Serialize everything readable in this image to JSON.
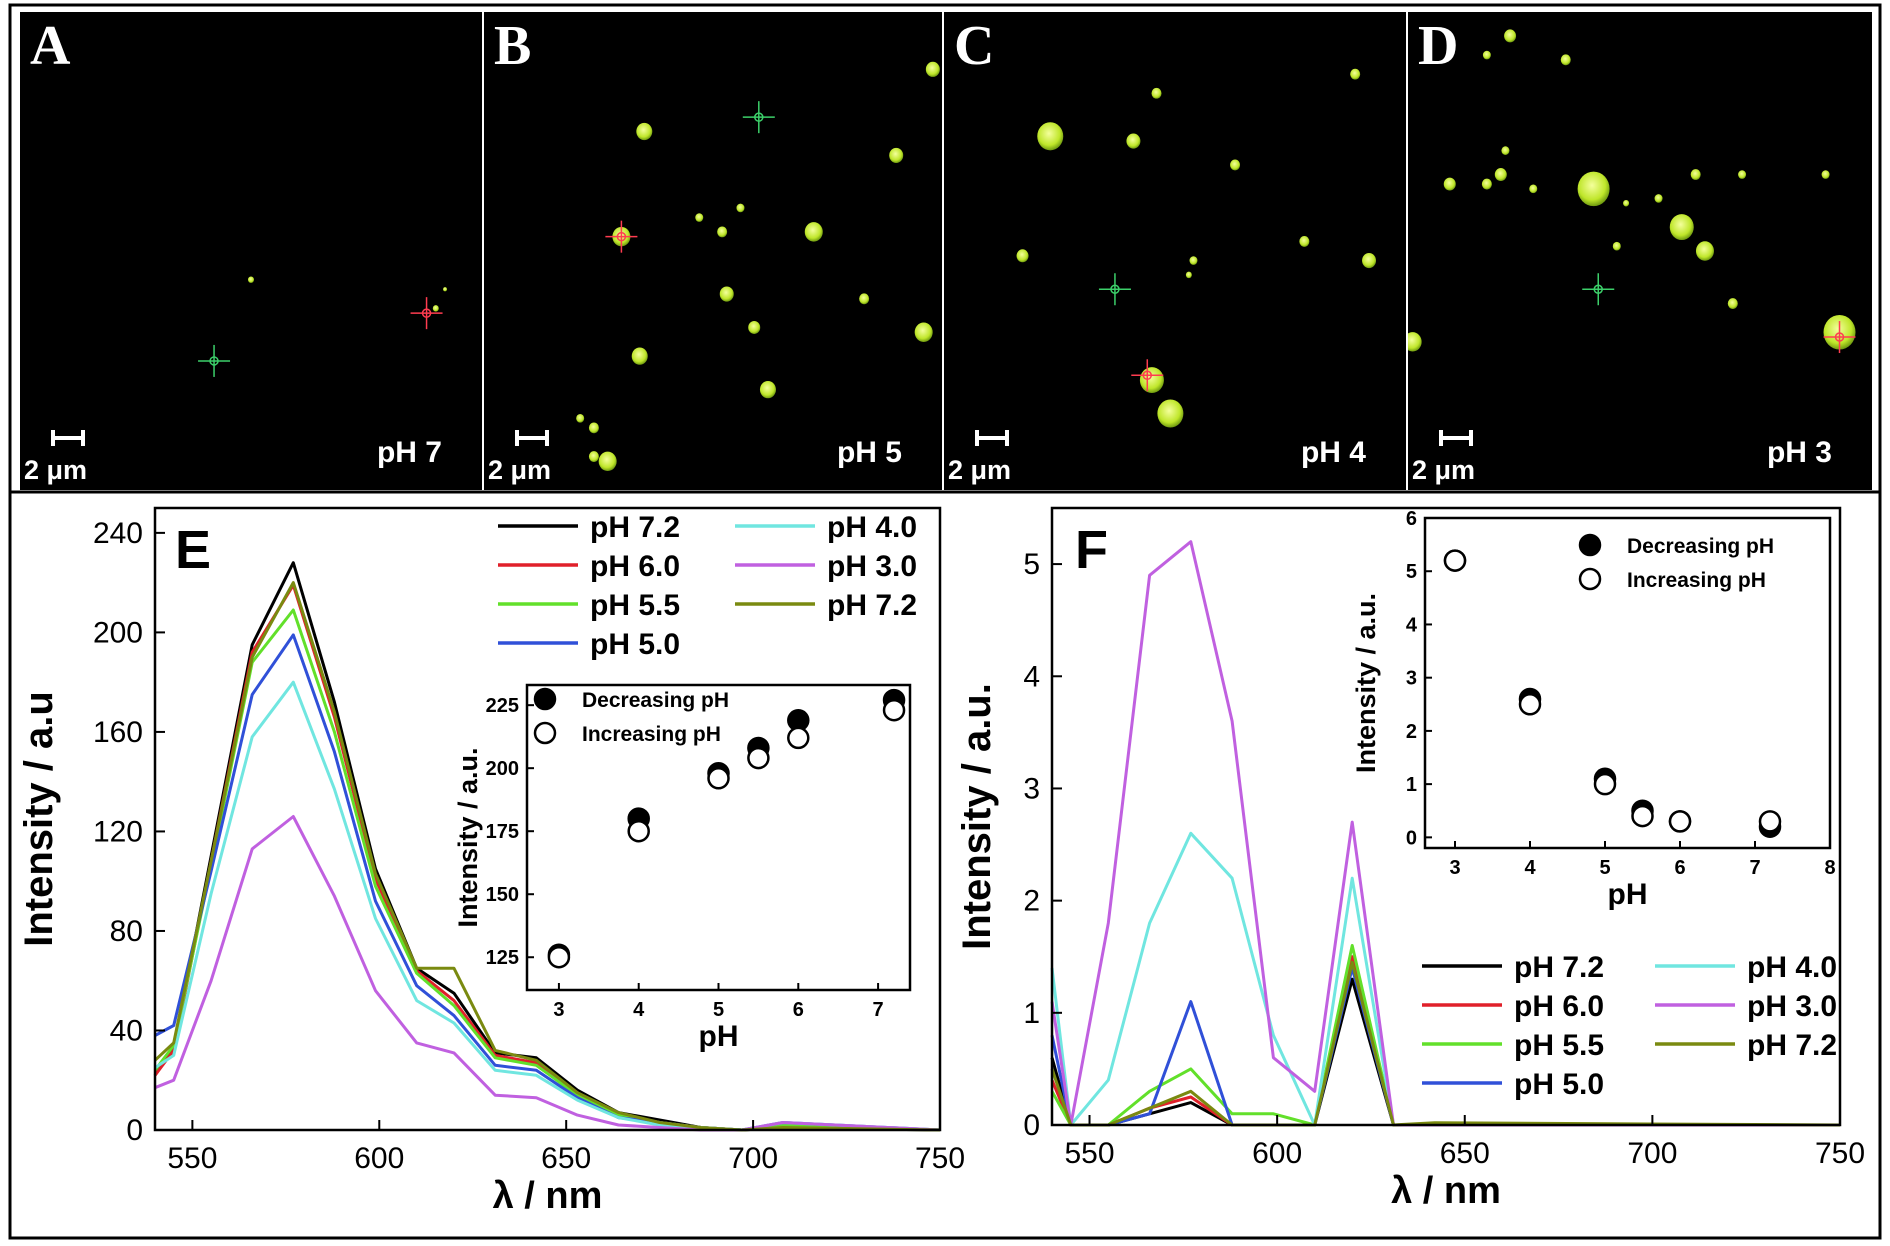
{
  "micrographs": [
    {
      "letter": "A",
      "ph_label": "pH 7",
      "scale_bar": "2 μm",
      "dots": [
        [
          0.5,
          0.56,
          3
        ],
        [
          0.9,
          0.62,
          3
        ],
        [
          0.92,
          0.58,
          2
        ]
      ],
      "markers": [
        {
          "x": 0.42,
          "y": 0.73,
          "color": "#3cd06a"
        },
        {
          "x": 0.88,
          "y": 0.63,
          "color": "#ff3c50"
        }
      ]
    },
    {
      "letter": "B",
      "ph_label": "pH 5",
      "scale_bar": "2 μm",
      "dots": [
        [
          0.35,
          0.25,
          8
        ],
        [
          0.3,
          0.47,
          9
        ],
        [
          0.52,
          0.46,
          5
        ],
        [
          0.72,
          0.46,
          9
        ],
        [
          0.53,
          0.59,
          7
        ],
        [
          0.59,
          0.66,
          6
        ],
        [
          0.34,
          0.72,
          8
        ],
        [
          0.62,
          0.79,
          8
        ],
        [
          0.24,
          0.87,
          5
        ],
        [
          0.21,
          0.85,
          4
        ],
        [
          0.24,
          0.93,
          5
        ],
        [
          0.9,
          0.3,
          7
        ],
        [
          0.98,
          0.12,
          7
        ],
        [
          0.96,
          0.67,
          9
        ],
        [
          0.83,
          0.6,
          5
        ],
        [
          0.47,
          0.43,
          4
        ],
        [
          0.56,
          0.41,
          4
        ],
        [
          0.27,
          0.94,
          9
        ]
      ],
      "markers": [
        {
          "x": 0.6,
          "y": 0.22,
          "color": "#3cd06a"
        },
        {
          "x": 0.3,
          "y": 0.47,
          "color": "#ff3c50"
        }
      ]
    },
    {
      "letter": "C",
      "ph_label": "pH 4",
      "scale_bar": "2 μm",
      "dots": [
        [
          0.23,
          0.26,
          13
        ],
        [
          0.41,
          0.27,
          7
        ],
        [
          0.46,
          0.17,
          5
        ],
        [
          0.63,
          0.32,
          5
        ],
        [
          0.17,
          0.51,
          6
        ],
        [
          0.54,
          0.52,
          4
        ],
        [
          0.78,
          0.48,
          5
        ],
        [
          0.92,
          0.52,
          7
        ],
        [
          0.89,
          0.13,
          5
        ],
        [
          0.45,
          0.77,
          12
        ],
        [
          0.49,
          0.84,
          13
        ],
        [
          0.53,
          0.55,
          3
        ]
      ],
      "markers": [
        {
          "x": 0.37,
          "y": 0.58,
          "color": "#3cd06a"
        },
        {
          "x": 0.44,
          "y": 0.76,
          "color": "#ff3c50"
        }
      ]
    },
    {
      "letter": "D",
      "ph_label": "pH 3",
      "scale_bar": "2 μm",
      "dots": [
        [
          0.2,
          0.34,
          6
        ],
        [
          0.17,
          0.36,
          5
        ],
        [
          0.09,
          0.36,
          6
        ],
        [
          0.27,
          0.37,
          4
        ],
        [
          0.21,
          0.29,
          4
        ],
        [
          0.4,
          0.37,
          16
        ],
        [
          0.59,
          0.45,
          12
        ],
        [
          0.64,
          0.5,
          9
        ],
        [
          0.9,
          0.34,
          4
        ],
        [
          0.01,
          0.69,
          9
        ],
        [
          0.93,
          0.67,
          16
        ],
        [
          0.72,
          0.34,
          4
        ],
        [
          0.62,
          0.34,
          5
        ],
        [
          0.54,
          0.39,
          4
        ],
        [
          0.47,
          0.4,
          3
        ],
        [
          0.7,
          0.61,
          5
        ],
        [
          0.22,
          0.05,
          6
        ],
        [
          0.34,
          0.1,
          5
        ],
        [
          0.17,
          0.09,
          4
        ],
        [
          0.45,
          0.49,
          4
        ]
      ],
      "markers": [
        {
          "x": 0.41,
          "y": 0.58,
          "color": "#3cd06a"
        },
        {
          "x": 0.93,
          "y": 0.68,
          "color": "#ff3c50"
        }
      ]
    }
  ],
  "chart_data": [
    {
      "panel": "E",
      "type": "line",
      "xlabel": "λ / nm",
      "ylabel": "Intensity / a.u",
      "xlim": [
        540,
        750
      ],
      "ylim": [
        0,
        250
      ],
      "xticks": [
        550,
        600,
        650,
        700,
        750
      ],
      "yticks": [
        0,
        40,
        80,
        120,
        160,
        200,
        240
      ],
      "x": [
        540,
        545,
        555,
        566,
        577,
        588,
        599,
        610,
        620,
        631,
        642,
        653,
        664,
        675,
        686,
        697,
        708,
        750
      ],
      "series": [
        {
          "name": "pH 7.2",
          "color": "#000000",
          "values": [
            22,
            33,
            110,
            195,
            228,
            172,
            105,
            65,
            55,
            31,
            29,
            16,
            7,
            4,
            1,
            0,
            1,
            0
          ]
        },
        {
          "name": "pH 6.0",
          "color": "#e0202a",
          "values": [
            22,
            32,
            108,
            192,
            219,
            166,
            101,
            64,
            52,
            30,
            27,
            15,
            6,
            3,
            1,
            0,
            2,
            0
          ]
        },
        {
          "name": "pH 5.5",
          "color": "#62e02a",
          "values": [
            24,
            34,
            106,
            188,
            209,
            160,
            98,
            63,
            50,
            29,
            26,
            14,
            6,
            3,
            1,
            0,
            2,
            0
          ]
        },
        {
          "name": "pH 5.0",
          "color": "#3050d8",
          "values": [
            38,
            42,
            104,
            175,
            199,
            152,
            92,
            58,
            46,
            26,
            24,
            13,
            5,
            3,
            1,
            0,
            3,
            0
          ]
        },
        {
          "name": "pH 4.0",
          "color": "#70e6e0",
          "values": [
            25,
            30,
            95,
            158,
            180,
            137,
            85,
            52,
            43,
            24,
            22,
            12,
            5,
            2,
            1,
            0,
            3,
            0
          ]
        },
        {
          "name": "pH 3.0",
          "color": "#c060e0",
          "values": [
            17,
            20,
            60,
            113,
            126,
            94,
            56,
            35,
            31,
            14,
            13,
            6,
            2,
            1,
            0,
            0,
            3,
            0
          ]
        },
        {
          "name": "pH 7.2",
          "color": "#7a8a10",
          "values": [
            28,
            35,
            108,
            190,
            220,
            168,
            103,
            65,
            65,
            32,
            28,
            15,
            7,
            3,
            1,
            0,
            1,
            0
          ]
        }
      ],
      "inset": {
        "type": "scatter",
        "xlabel": "pH",
        "ylabel": "Intensity / a.u.",
        "xlim": [
          2.6,
          7.4
        ],
        "ylim": [
          112,
          233
        ],
        "xticks": [
          3,
          4,
          5,
          6,
          7
        ],
        "yticks": [
          125,
          150,
          175,
          200,
          225
        ],
        "series": [
          {
            "name": "Decreasing pH",
            "fill": "filled",
            "points": [
              [
                3,
                126
              ],
              [
                4,
                180
              ],
              [
                5,
                198
              ],
              [
                5.5,
                208
              ],
              [
                6,
                219
              ],
              [
                7.2,
                227
              ]
            ]
          },
          {
            "name": "Increasing pH",
            "fill": "open",
            "points": [
              [
                3,
                125
              ],
              [
                4,
                175
              ],
              [
                5,
                196
              ],
              [
                5.5,
                204
              ],
              [
                6,
                212
              ],
              [
                7.2,
                223
              ]
            ]
          }
        ]
      }
    },
    {
      "panel": "F",
      "type": "line",
      "xlabel": "λ / nm",
      "ylabel": "Intensity / a.u.",
      "xlim": [
        540,
        750
      ],
      "ylim": [
        0,
        5.5
      ],
      "xticks": [
        550,
        600,
        650,
        700,
        750
      ],
      "yticks": [
        0,
        1,
        2,
        3,
        4,
        5
      ],
      "x": [
        540,
        545,
        555,
        566,
        577,
        588,
        599,
        610,
        620,
        631,
        642,
        750
      ],
      "series": [
        {
          "name": "pH 7.2",
          "color": "#000000",
          "values": [
            0.6,
            0,
            0,
            0.1,
            0.2,
            0,
            0,
            0,
            1.3,
            0,
            0,
            0
          ]
        },
        {
          "name": "pH 6.0",
          "color": "#e0202a",
          "values": [
            0.4,
            0,
            0,
            0.15,
            0.25,
            0,
            0,
            0,
            1.5,
            0,
            0,
            0
          ]
        },
        {
          "name": "pH 5.5",
          "color": "#62e02a",
          "values": [
            0.3,
            0,
            0,
            0.3,
            0.5,
            0.1,
            0.1,
            0,
            1.6,
            0,
            0,
            0
          ]
        },
        {
          "name": "pH 5.0",
          "color": "#3050d8",
          "values": [
            0.8,
            0,
            0,
            0.1,
            1.1,
            0,
            0,
            0,
            1.4,
            0,
            0,
            0
          ]
        },
        {
          "name": "pH 4.0",
          "color": "#70e6e0",
          "values": [
            1.4,
            0,
            0.4,
            1.8,
            2.6,
            2.2,
            0.8,
            0,
            2.2,
            0,
            0,
            0
          ]
        },
        {
          "name": "pH 3.0",
          "color": "#c060e0",
          "values": [
            1.1,
            0,
            1.8,
            4.9,
            5.2,
            3.6,
            0.6,
            0.3,
            2.7,
            0,
            0,
            0
          ]
        },
        {
          "name": "pH 7.2",
          "color": "#7a8a10",
          "values": [
            0.5,
            0,
            0,
            0.15,
            0.3,
            0,
            0,
            0,
            1.45,
            0,
            0.02,
            0
          ]
        }
      ],
      "inset": {
        "type": "scatter",
        "xlabel": "pH",
        "ylabel": "Intensity / a.u.",
        "xlim": [
          2.6,
          8
        ],
        "ylim": [
          -0.2,
          6
        ],
        "xticks": [
          3,
          4,
          5,
          6,
          7,
          8
        ],
        "yticks": [
          0,
          1,
          2,
          3,
          4,
          5,
          6
        ],
        "series": [
          {
            "name": "Decreasing pH",
            "fill": "filled",
            "points": [
              [
                3,
                5.2
              ],
              [
                4,
                2.6
              ],
              [
                5,
                1.1
              ],
              [
                5.5,
                0.5
              ],
              [
                6,
                0.3
              ],
              [
                7.2,
                0.2
              ]
            ]
          },
          {
            "name": "Increasing pH",
            "fill": "open",
            "points": [
              [
                3,
                5.2
              ],
              [
                4,
                2.5
              ],
              [
                5,
                1.0
              ],
              [
                5.5,
                0.4
              ],
              [
                6,
                0.3
              ],
              [
                7.2,
                0.3
              ]
            ]
          }
        ]
      }
    }
  ]
}
